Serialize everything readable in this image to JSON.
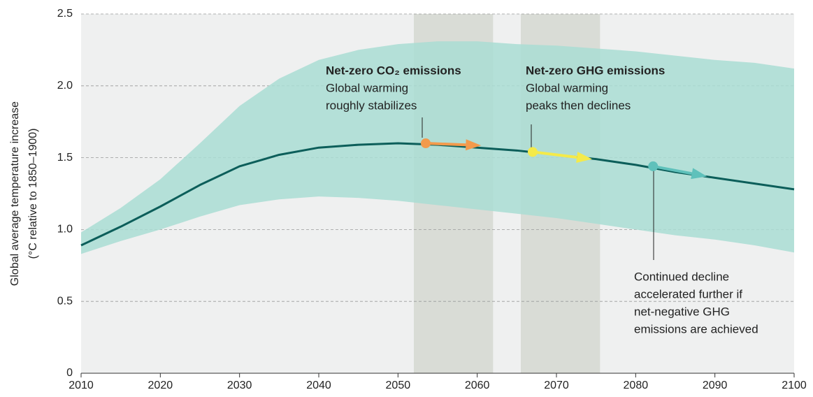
{
  "chart_data": {
    "type": "line",
    "y_label": [
      "Global average temperature increase",
      "(°C relative to 1850–1900)"
    ],
    "x": [
      2010,
      2015,
      2020,
      2025,
      2030,
      2035,
      2040,
      2045,
      2050,
      2055,
      2060,
      2065,
      2070,
      2075,
      2080,
      2085,
      2090,
      2095,
      2100
    ],
    "series": [
      {
        "color": "#0c5e5a",
        "values": [
          0.89,
          1.02,
          1.16,
          1.31,
          1.44,
          1.52,
          1.57,
          1.59,
          1.6,
          1.59,
          1.57,
          1.55,
          1.52,
          1.49,
          1.45,
          1.4,
          1.36,
          1.32,
          1.28
        ]
      }
    ],
    "band": {
      "color": "#a9ddd3",
      "upper": [
        0.98,
        1.15,
        1.35,
        1.6,
        1.86,
        2.05,
        2.18,
        2.25,
        2.29,
        2.31,
        2.31,
        2.29,
        2.28,
        2.26,
        2.24,
        2.21,
        2.18,
        2.16,
        2.12
      ],
      "lower": [
        0.83,
        0.92,
        1.0,
        1.09,
        1.17,
        1.21,
        1.23,
        1.22,
        1.2,
        1.17,
        1.14,
        1.11,
        1.08,
        1.04,
        1.0,
        0.96,
        0.93,
        0.89,
        0.84
      ]
    },
    "highlights": [
      [
        2052,
        2062
      ],
      [
        2065.5,
        2075.5
      ]
    ],
    "markers": [
      {
        "x": 2053.5,
        "y": 1.6,
        "x_end": 2060.5,
        "y_end": 1.585,
        "color": "#f39a4c"
      },
      {
        "x": 2067,
        "y": 1.54,
        "x_end": 2074.5,
        "y_end": 1.49,
        "color": "#f4ea4a"
      },
      {
        "x": 2082.2,
        "y": 1.44,
        "x_end": 2089,
        "y_end": 1.37,
        "color": "#5fc1bb"
      }
    ],
    "annotations": [
      {
        "title": "Net-zero CO₂ emissions",
        "lines": [
          "Global warming",
          "roughly stabilizes"
        ]
      },
      {
        "title": "Net-zero GHG emissions",
        "lines": [
          "Global warming",
          "peaks then declines"
        ]
      },
      {
        "lines": [
          "Continued decline",
          "accelerated further if",
          "net-negative GHG",
          "emissions are achieved"
        ]
      }
    ],
    "xlim": [
      2010,
      2100
    ],
    "xticks": [
      2010,
      2020,
      2030,
      2040,
      2050,
      2060,
      2070,
      2080,
      2090,
      2100
    ],
    "ylim": [
      0,
      2.5
    ],
    "yticks": [
      0,
      0.5,
      {
        "value": 1,
        "label": "1.0"
      },
      1.5,
      {
        "value": 2,
        "label": "2.0"
      },
      2.5
    ],
    "grid": true
  }
}
